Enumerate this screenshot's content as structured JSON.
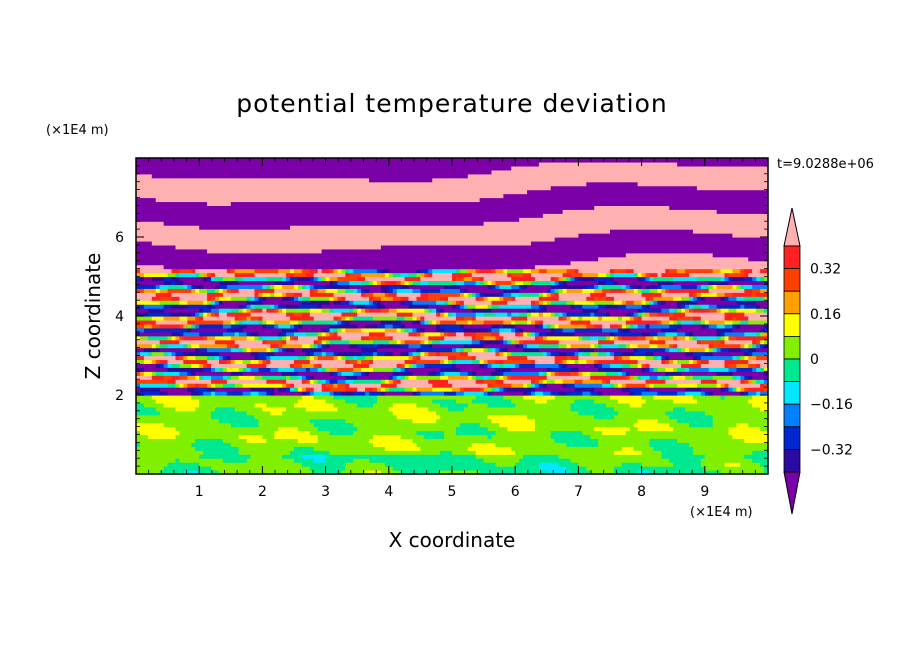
{
  "chart_data": {
    "type": "heatmap",
    "title": "potential temperature deviation",
    "xlabel": "X coordinate",
    "ylabel": "Z coordinate",
    "x_unit": "(×1E4 m)",
    "y_unit": "(×1E4 m)",
    "time_label": "t=9.0288e+06",
    "xlim": [
      0,
      10
    ],
    "ylim": [
      0,
      8
    ],
    "x_ticks": [
      1,
      2,
      3,
      4,
      5,
      6,
      7,
      8,
      9
    ],
    "y_ticks": [
      2,
      4,
      6
    ],
    "colorbar": {
      "levels": [
        -0.4,
        -0.32,
        -0.24,
        -0.16,
        -0.08,
        0,
        0.08,
        0.16,
        0.24,
        0.32,
        0.4
      ],
      "colors": [
        "#7b00a8",
        "#2a0aa0",
        "#0028d0",
        "#0080ff",
        "#00e8ff",
        "#00e890",
        "#80f000",
        "#ffff00",
        "#ffa000",
        "#ff4000",
        "#ff2020",
        "#ffb0b0"
      ],
      "tick_labels": [
        "0.32",
        "0.16",
        "0",
        "−0.16",
        "−0.32"
      ],
      "tick_values": [
        0.32,
        0.16,
        0,
        -0.16,
        -0.32
      ],
      "extend": "both"
    },
    "legend_placement": "right"
  }
}
